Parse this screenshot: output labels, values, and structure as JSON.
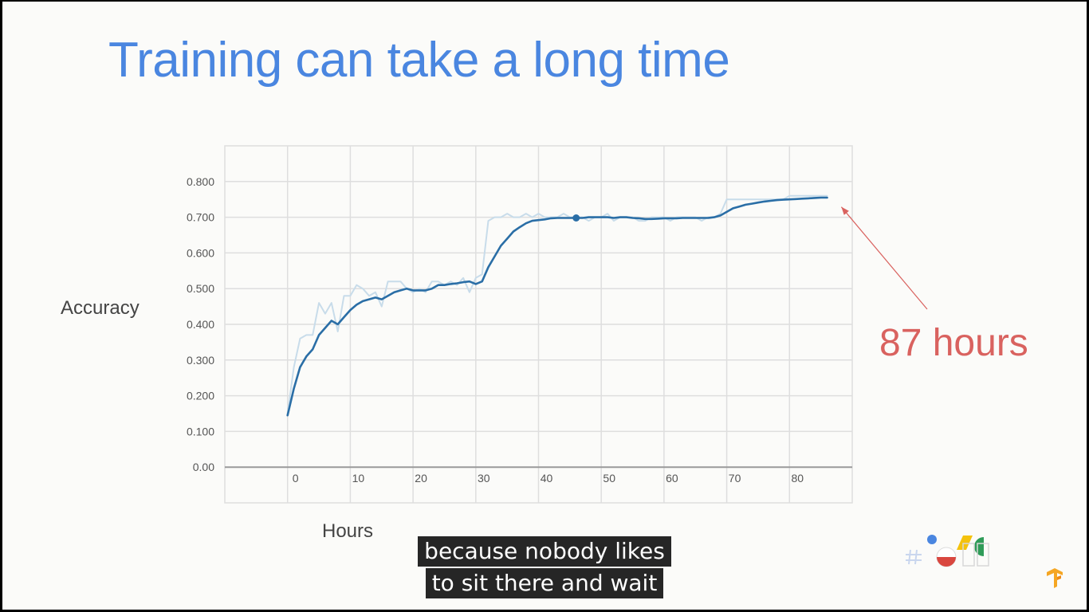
{
  "slide": {
    "title": "Training can take a long time",
    "callout": "87 hours"
  },
  "caption": {
    "line1": "because nobody likes",
    "line2": "to sit there and wait"
  },
  "colors": {
    "title": "#4a86e0",
    "raw_line": "#c8dcea",
    "smoothed_line": "#2a6ea6",
    "callout": "#d9625f",
    "arrow": "#d9625f",
    "grid": "#dedede"
  },
  "icons": [
    "google-io-logo",
    "tensorflow-logo"
  ],
  "chart_data": {
    "type": "line",
    "title": "",
    "xlabel": "Hours",
    "ylabel": "Accuracy",
    "xlim": [
      -10,
      90
    ],
    "ylim": [
      -0.1,
      0.9
    ],
    "x_ticks": [
      0,
      10,
      20,
      30,
      40,
      50,
      60,
      70,
      80
    ],
    "y_ticks": [
      0.0,
      0.1,
      0.2,
      0.3,
      0.4,
      0.5,
      0.6,
      0.7,
      0.8
    ],
    "x_tick_labels": [
      "0",
      "10",
      "20",
      "30",
      "40",
      "50",
      "60",
      "70",
      "80"
    ],
    "y_tick_labels": [
      "0.00",
      "0.100",
      "0.200",
      "0.300",
      "0.400",
      "0.500",
      "0.600",
      "0.700",
      "0.800"
    ],
    "grid": true,
    "series": [
      {
        "style": "raw",
        "x": [
          0,
          1,
          2,
          3,
          4,
          5,
          6,
          7,
          8,
          9,
          10,
          11,
          12,
          13,
          14,
          15,
          16,
          17,
          18,
          19,
          20,
          21,
          22,
          23,
          24,
          25,
          26,
          27,
          28,
          29,
          30,
          31,
          32,
          33,
          34,
          35,
          36,
          37,
          38,
          39,
          40,
          41,
          42,
          43,
          44,
          45,
          46,
          47,
          48,
          49,
          50,
          51,
          52,
          53,
          54,
          55,
          56,
          57,
          58,
          59,
          60,
          61,
          62,
          63,
          64,
          65,
          66,
          67,
          68,
          69,
          70,
          71,
          72,
          73,
          74,
          75,
          76,
          77,
          78,
          79,
          80,
          81,
          82,
          83,
          84,
          85,
          86
        ],
        "values": [
          0.15,
          0.28,
          0.36,
          0.37,
          0.37,
          0.46,
          0.43,
          0.46,
          0.38,
          0.48,
          0.48,
          0.51,
          0.5,
          0.48,
          0.49,
          0.45,
          0.52,
          0.52,
          0.52,
          0.5,
          0.49,
          0.5,
          0.49,
          0.52,
          0.52,
          0.51,
          0.52,
          0.51,
          0.53,
          0.49,
          0.53,
          0.54,
          0.69,
          0.7,
          0.7,
          0.71,
          0.7,
          0.7,
          0.71,
          0.7,
          0.71,
          0.7,
          0.7,
          0.7,
          0.71,
          0.7,
          0.7,
          0.7,
          0.69,
          0.7,
          0.7,
          0.71,
          0.69,
          0.7,
          0.7,
          0.7,
          0.69,
          0.69,
          0.7,
          0.7,
          0.7,
          0.69,
          0.7,
          0.7,
          0.7,
          0.7,
          0.69,
          0.7,
          0.7,
          0.71,
          0.75,
          0.75,
          0.75,
          0.75,
          0.75,
          0.75,
          0.75,
          0.75,
          0.75,
          0.75,
          0.76,
          0.76,
          0.76,
          0.76,
          0.76,
          0.76,
          0.76
        ]
      },
      {
        "style": "smoothed",
        "x": [
          0,
          1,
          2,
          3,
          4,
          5,
          6,
          7,
          8,
          9,
          10,
          11,
          12,
          13,
          14,
          15,
          16,
          17,
          18,
          19,
          20,
          21,
          22,
          23,
          24,
          25,
          26,
          27,
          28,
          29,
          30,
          31,
          32,
          33,
          34,
          35,
          36,
          37,
          38,
          39,
          40,
          41,
          42,
          43,
          44,
          45,
          46,
          47,
          48,
          49,
          50,
          51,
          52,
          53,
          54,
          55,
          56,
          57,
          58,
          59,
          60,
          61,
          62,
          63,
          64,
          65,
          66,
          67,
          68,
          69,
          70,
          71,
          72,
          73,
          74,
          75,
          76,
          77,
          78,
          79,
          80,
          81,
          82,
          83,
          84,
          85,
          86
        ],
        "values": [
          0.145,
          0.22,
          0.28,
          0.31,
          0.33,
          0.37,
          0.39,
          0.41,
          0.4,
          0.42,
          0.44,
          0.455,
          0.465,
          0.47,
          0.475,
          0.47,
          0.48,
          0.49,
          0.495,
          0.5,
          0.495,
          0.495,
          0.495,
          0.5,
          0.51,
          0.51,
          0.513,
          0.515,
          0.518,
          0.52,
          0.513,
          0.52,
          0.56,
          0.59,
          0.62,
          0.64,
          0.66,
          0.672,
          0.683,
          0.69,
          0.692,
          0.694,
          0.697,
          0.698,
          0.698,
          0.698,
          0.698,
          0.698,
          0.7,
          0.7,
          0.7,
          0.7,
          0.698,
          0.7,
          0.7,
          0.698,
          0.697,
          0.695,
          0.695,
          0.696,
          0.697,
          0.697,
          0.697,
          0.698,
          0.698,
          0.698,
          0.698,
          0.698,
          0.7,
          0.705,
          0.715,
          0.725,
          0.73,
          0.735,
          0.738,
          0.741,
          0.744,
          0.746,
          0.748,
          0.749,
          0.75,
          0.751,
          0.752,
          0.753,
          0.754,
          0.755,
          0.755
        ]
      }
    ],
    "highlight_point": {
      "x": 46,
      "y": 0.698
    },
    "annotation": {
      "text": "87 hours",
      "points_to": {
        "x": 87,
        "y": 0.74
      }
    }
  }
}
